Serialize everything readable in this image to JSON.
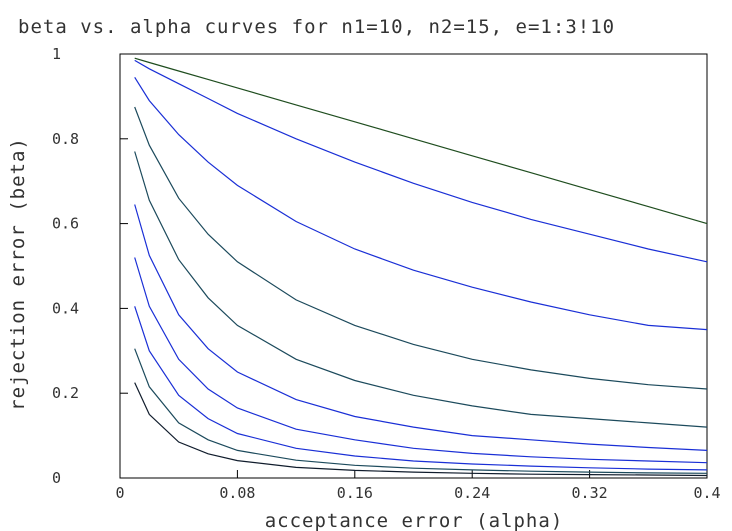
{
  "chart_data": {
    "type": "line",
    "title": "beta vs. alpha curves for n1=10, n2=15, e=1:3!10",
    "xlabel": "acceptance error (alpha)",
    "ylabel": "rejection error (beta)",
    "xlim": [
      0,
      0.4
    ],
    "ylim": [
      0,
      1
    ],
    "x_ticks": [
      "0",
      "0.08",
      "0.16",
      "0.24",
      "0.32",
      "0.4"
    ],
    "y_ticks": [
      "0",
      "0.2",
      "0.4",
      "0.6",
      "0.8",
      "1"
    ],
    "grid": false,
    "legend": "none",
    "colors": {
      "axis": "#000000",
      "text": "#333333",
      "green": "#1f4d1f",
      "blue": "#1a2fd6",
      "teal": "#1c4a5c",
      "dark": "#101c2c"
    },
    "x": [
      0.01,
      0.02,
      0.04,
      0.06,
      0.08,
      0.12,
      0.16,
      0.2,
      0.24,
      0.28,
      0.32,
      0.36,
      0.4
    ],
    "series": [
      {
        "color": "green",
        "values": [
          0.99,
          0.98,
          0.96,
          0.94,
          0.92,
          0.88,
          0.84,
          0.8,
          0.76,
          0.72,
          0.68,
          0.64,
          0.6
        ]
      },
      {
        "color": "blue",
        "values": [
          0.985,
          0.965,
          0.93,
          0.895,
          0.86,
          0.8,
          0.745,
          0.695,
          0.65,
          0.61,
          0.575,
          0.54,
          0.51
        ]
      },
      {
        "color": "blue",
        "values": [
          0.945,
          0.89,
          0.81,
          0.745,
          0.69,
          0.605,
          0.54,
          0.49,
          0.45,
          0.415,
          0.385,
          0.36,
          0.35
        ]
      },
      {
        "color": "teal",
        "values": [
          0.875,
          0.785,
          0.66,
          0.575,
          0.51,
          0.42,
          0.36,
          0.315,
          0.28,
          0.255,
          0.235,
          0.22,
          0.21
        ]
      },
      {
        "color": "teal",
        "values": [
          0.77,
          0.655,
          0.515,
          0.425,
          0.36,
          0.28,
          0.23,
          0.195,
          0.17,
          0.15,
          0.14,
          0.13,
          0.12
        ]
      },
      {
        "color": "blue",
        "values": [
          0.645,
          0.525,
          0.385,
          0.305,
          0.25,
          0.185,
          0.145,
          0.12,
          0.1,
          0.09,
          0.08,
          0.072,
          0.065
        ]
      },
      {
        "color": "blue",
        "values": [
          0.52,
          0.405,
          0.28,
          0.21,
          0.165,
          0.115,
          0.09,
          0.07,
          0.058,
          0.05,
          0.044,
          0.04,
          0.036
        ]
      },
      {
        "color": "blue",
        "values": [
          0.405,
          0.3,
          0.195,
          0.14,
          0.105,
          0.07,
          0.052,
          0.04,
          0.033,
          0.028,
          0.024,
          0.021,
          0.019
        ]
      },
      {
        "color": "teal",
        "values": [
          0.305,
          0.215,
          0.13,
          0.09,
          0.065,
          0.042,
          0.03,
          0.023,
          0.019,
          0.016,
          0.014,
          0.012,
          0.011
        ]
      },
      {
        "color": "dark",
        "values": [
          0.225,
          0.15,
          0.085,
          0.057,
          0.041,
          0.025,
          0.018,
          0.014,
          0.011,
          0.009,
          0.008,
          0.007,
          0.006
        ]
      }
    ]
  }
}
